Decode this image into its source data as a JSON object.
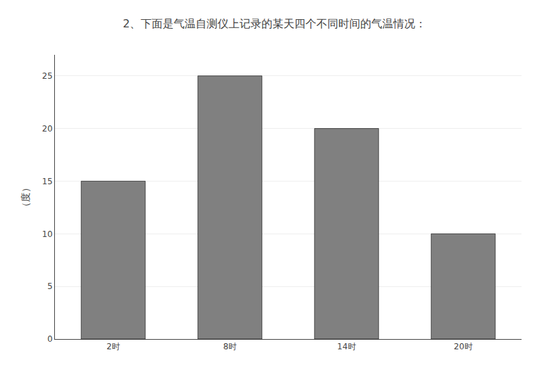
{
  "chart_data": {
    "type": "bar",
    "title": "2、下面是气温自测仪上记录的某天四个不同时间的气温情况：",
    "ylabel": "（度）",
    "categories": [
      "2时",
      "8时",
      "14时",
      "20时"
    ],
    "values": [
      15,
      25,
      20,
      10
    ],
    "color": "#808080",
    "ylim": [
      0,
      27
    ],
    "yticks": [
      0,
      5,
      10,
      15,
      20,
      25
    ],
    "grid": true
  }
}
